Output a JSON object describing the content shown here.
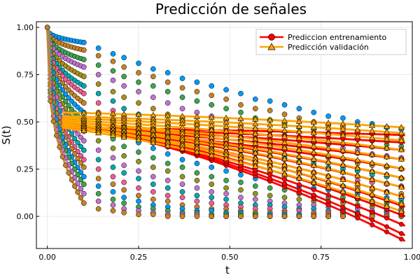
{
  "chart_data": {
    "type": "scatter",
    "title": "Predicción de señales",
    "xlabel": "t",
    "ylabel": "S(t)",
    "xlim": [
      -0.03,
      1.0
    ],
    "ylim": [
      -0.17,
      1.03
    ],
    "xticks": [
      0.0,
      0.25,
      0.5,
      0.75,
      1.0
    ],
    "xtick_labels": [
      "0.00",
      "0.25",
      "0.50",
      "0.75",
      "1.00"
    ],
    "yticks": [
      0.0,
      0.25,
      0.5,
      0.75,
      1.0
    ],
    "ytick_labels": [
      "0.00",
      "0.25",
      "0.50",
      "0.75",
      "1.00"
    ],
    "grid": true,
    "legend_position": "top-right",
    "dense_region": {
      "x_range": [
        0.0,
        0.1
      ],
      "y_range": [
        0.0,
        1.0
      ],
      "description": "many overlapping curves decaying from S=1"
    },
    "sample_times": [
      0.1,
      0.14,
      0.18,
      0.21,
      0.25,
      0.29,
      0.33,
      0.37,
      0.41,
      0.45,
      0.49,
      0.53,
      0.57,
      0.61,
      0.65,
      0.69,
      0.73,
      0.77,
      0.81,
      0.85,
      0.89,
      0.93,
      0.97
    ],
    "signals": [
      {
        "color": "#009AFA",
        "values": [
          0.92,
          0.89,
          0.86,
          0.84,
          0.81,
          0.78,
          0.76,
          0.73,
          0.71,
          0.69,
          0.67,
          0.65,
          0.62,
          0.61,
          0.59,
          0.57,
          0.55,
          0.53,
          0.52,
          0.5,
          0.49,
          0.47,
          0.46
        ]
      },
      {
        "color": "#C68225",
        "values": [
          0.88,
          0.85,
          0.82,
          0.79,
          0.76,
          0.74,
          0.71,
          0.68,
          0.66,
          0.64,
          0.62,
          0.59,
          0.57,
          0.56,
          0.54,
          0.52,
          0.5,
          0.48,
          0.47,
          0.45,
          0.44,
          0.42,
          0.41
        ]
      },
      {
        "color": "#3EA44E",
        "values": [
          0.83,
          0.8,
          0.77,
          0.74,
          0.71,
          0.69,
          0.66,
          0.63,
          0.61,
          0.59,
          0.57,
          0.55,
          0.52,
          0.51,
          0.49,
          0.47,
          0.46,
          0.44,
          0.43,
          0.41,
          0.4,
          0.38,
          0.37
        ]
      },
      {
        "color": "#C271D2",
        "values": [
          0.79,
          0.75,
          0.72,
          0.69,
          0.66,
          0.63,
          0.6,
          0.57,
          0.55,
          0.53,
          0.51,
          0.48,
          0.46,
          0.45,
          0.43,
          0.41,
          0.39,
          0.38,
          0.36,
          0.35,
          0.33,
          0.32,
          0.31
        ]
      },
      {
        "color": "#AC8D18",
        "values": [
          0.74,
          0.7,
          0.66,
          0.63,
          0.6,
          0.57,
          0.54,
          0.51,
          0.48,
          0.46,
          0.44,
          0.42,
          0.4,
          0.38,
          0.36,
          0.35,
          0.33,
          0.31,
          0.3,
          0.28,
          0.27,
          0.26,
          0.25
        ]
      },
      {
        "color": "#00A9AD",
        "values": [
          0.69,
          0.65,
          0.61,
          0.57,
          0.54,
          0.51,
          0.48,
          0.45,
          0.43,
          0.41,
          0.38,
          0.36,
          0.34,
          0.32,
          0.31,
          0.29,
          0.28,
          0.26,
          0.25,
          0.24,
          0.22,
          0.21,
          0.2
        ]
      },
      {
        "color": "#ED5D92",
        "values": [
          0.65,
          0.6,
          0.56,
          0.52,
          0.49,
          0.46,
          0.43,
          0.4,
          0.38,
          0.36,
          0.33,
          0.31,
          0.29,
          0.27,
          0.26,
          0.24,
          0.23,
          0.21,
          0.2,
          0.19,
          0.18,
          0.17,
          0.16
        ]
      },
      {
        "color": "#C68225",
        "values": [
          0.6,
          0.55,
          0.51,
          0.47,
          0.44,
          0.41,
          0.38,
          0.35,
          0.33,
          0.3,
          0.28,
          0.26,
          0.24,
          0.23,
          0.21,
          0.2,
          0.18,
          0.17,
          0.16,
          0.15,
          0.14,
          0.13,
          0.12
        ]
      },
      {
        "color": "#009AFA",
        "values": [
          0.55,
          0.5,
          0.46,
          0.42,
          0.39,
          0.36,
          0.33,
          0.3,
          0.28,
          0.26,
          0.24,
          0.22,
          0.2,
          0.19,
          0.17,
          0.16,
          0.15,
          0.14,
          0.13,
          0.12,
          0.11,
          0.1,
          0.09
        ]
      },
      {
        "color": "#3EA44E",
        "values": [
          0.5,
          0.45,
          0.41,
          0.37,
          0.34,
          0.31,
          0.28,
          0.26,
          0.23,
          0.21,
          0.19,
          0.18,
          0.16,
          0.15,
          0.14,
          0.12,
          0.11,
          0.1,
          0.1,
          0.09,
          0.08,
          0.07,
          0.07
        ]
      },
      {
        "color": "#8E971E",
        "values": [
          0.45,
          0.4,
          0.36,
          0.32,
          0.29,
          0.26,
          0.24,
          0.21,
          0.19,
          0.17,
          0.15,
          0.14,
          0.12,
          0.11,
          0.1,
          0.09,
          0.08,
          0.07,
          0.07,
          0.06,
          0.05,
          0.05,
          0.04
        ]
      },
      {
        "color": "#C271D2",
        "values": [
          0.4,
          0.35,
          0.31,
          0.27,
          0.24,
          0.21,
          0.19,
          0.17,
          0.15,
          0.13,
          0.12,
          0.1,
          0.09,
          0.08,
          0.07,
          0.06,
          0.06,
          0.05,
          0.04,
          0.04,
          0.03,
          0.03,
          0.03
        ]
      },
      {
        "color": "#00A9AD",
        "values": [
          0.35,
          0.3,
          0.26,
          0.23,
          0.2,
          0.17,
          0.15,
          0.13,
          0.11,
          0.1,
          0.09,
          0.07,
          0.06,
          0.06,
          0.05,
          0.04,
          0.04,
          0.03,
          0.03,
          0.02,
          0.02,
          0.02,
          0.02
        ]
      },
      {
        "color": "#ED5D92",
        "values": [
          0.3,
          0.25,
          0.21,
          0.18,
          0.15,
          0.13,
          0.11,
          0.1,
          0.08,
          0.07,
          0.06,
          0.05,
          0.04,
          0.04,
          0.03,
          0.03,
          0.02,
          0.02,
          0.02,
          0.01,
          0.01,
          0.01,
          0.01
        ]
      },
      {
        "color": "#C68225",
        "values": [
          0.26,
          0.2,
          0.17,
          0.14,
          0.11,
          0.09,
          0.08,
          0.06,
          0.05,
          0.04,
          0.04,
          0.03,
          0.02,
          0.02,
          0.02,
          0.01,
          0.01,
          0.01,
          0.01,
          0.01,
          0.0,
          0.0,
          0.0
        ]
      },
      {
        "color": "#009AFA",
        "values": [
          0.21,
          0.16,
          0.13,
          0.1,
          0.08,
          0.06,
          0.05,
          0.04,
          0.03,
          0.03,
          0.02,
          0.02,
          0.01,
          0.01,
          0.01,
          0.01,
          0.0,
          0.0,
          0.0,
          0.0,
          0.0,
          0.0,
          0.0
        ]
      },
      {
        "color": "#3EA44E",
        "values": [
          0.17,
          0.12,
          0.09,
          0.07,
          0.05,
          0.04,
          0.03,
          0.02,
          0.02,
          0.01,
          0.01,
          0.01,
          0.01,
          0.0,
          0.0,
          0.0,
          0.0,
          0.0,
          0.0,
          0.0,
          0.0,
          0.0,
          0.0
        ]
      },
      {
        "color": "#C271D2",
        "values": [
          0.12,
          0.08,
          0.06,
          0.04,
          0.03,
          0.02,
          0.01,
          0.01,
          0.01,
          0.0,
          0.0,
          0.0,
          0.0,
          0.0,
          0.0,
          0.0,
          0.0,
          0.0,
          0.0,
          0.0,
          0.0,
          0.0,
          0.0
        ]
      },
      {
        "color": "#C68225",
        "values": [
          0.07,
          0.04,
          0.03,
          0.02,
          0.01,
          0.01,
          0.0,
          0.0,
          0.0,
          0.0,
          0.0,
          0.0,
          0.0,
          0.0,
          0.0,
          0.0,
          0.0,
          0.0,
          0.0,
          0.0,
          0.0,
          0.0,
          0.0
        ]
      }
    ],
    "series": [
      {
        "name": "Prediccion entrenamiento",
        "color": "#FF0000",
        "marker": "circle",
        "curves": [
          {
            "start": [
              0.04,
              0.5
            ],
            "end": [
              0.98,
              -0.13
            ]
          },
          {
            "start": [
              0.04,
              0.5
            ],
            "end": [
              0.98,
              -0.1
            ]
          },
          {
            "start": [
              0.04,
              0.49
            ],
            "end": [
              0.98,
              -0.05
            ]
          },
          {
            "start": [
              0.04,
              0.49
            ],
            "end": [
              0.98,
              0.0
            ]
          },
          {
            "start": [
              0.04,
              0.49
            ],
            "end": [
              0.98,
              0.05
            ]
          },
          {
            "start": [
              0.04,
              0.48
            ],
            "end": [
              0.98,
              0.1
            ]
          },
          {
            "start": [
              0.04,
              0.48
            ],
            "end": [
              0.98,
              0.15
            ]
          },
          {
            "start": [
              0.04,
              0.48
            ],
            "end": [
              0.98,
              0.2
            ]
          },
          {
            "start": [
              0.04,
              0.47
            ],
            "end": [
              0.98,
              0.25
            ]
          },
          {
            "start": [
              0.04,
              0.47
            ],
            "end": [
              0.98,
              0.3
            ]
          },
          {
            "start": [
              0.04,
              0.47
            ],
            "end": [
              0.98,
              0.35
            ]
          },
          {
            "start": [
              0.04,
              0.47
            ],
            "end": [
              0.98,
              0.39
            ]
          },
          {
            "start": [
              0.04,
              0.47
            ],
            "end": [
              0.98,
              0.43
            ]
          }
        ]
      },
      {
        "name": "Predicción validación",
        "color": "#FFA500",
        "marker": "triangle",
        "curves": [
          {
            "start": [
              0.04,
              0.55
            ],
            "end": [
              0.98,
              0.47
            ]
          },
          {
            "start": [
              0.04,
              0.53
            ],
            "end": [
              0.98,
              0.44
            ]
          },
          {
            "start": [
              0.04,
              0.52
            ],
            "end": [
              0.98,
              0.4
            ]
          },
          {
            "start": [
              0.04,
              0.51
            ],
            "end": [
              0.98,
              0.35
            ]
          },
          {
            "start": [
              0.04,
              0.5
            ],
            "end": [
              0.98,
              0.3
            ]
          },
          {
            "start": [
              0.04,
              0.5
            ],
            "end": [
              0.98,
              0.25
            ]
          },
          {
            "start": [
              0.04,
              0.49
            ],
            "end": [
              0.98,
              0.2
            ]
          },
          {
            "start": [
              0.04,
              0.49
            ],
            "end": [
              0.98,
              0.15
            ]
          },
          {
            "start": [
              0.04,
              0.48
            ],
            "end": [
              0.98,
              0.1
            ]
          },
          {
            "start": [
              0.04,
              0.48
            ],
            "end": [
              0.98,
              0.06
            ]
          },
          {
            "start": [
              0.04,
              0.47
            ],
            "end": [
              0.98,
              0.02
            ]
          }
        ]
      }
    ]
  }
}
